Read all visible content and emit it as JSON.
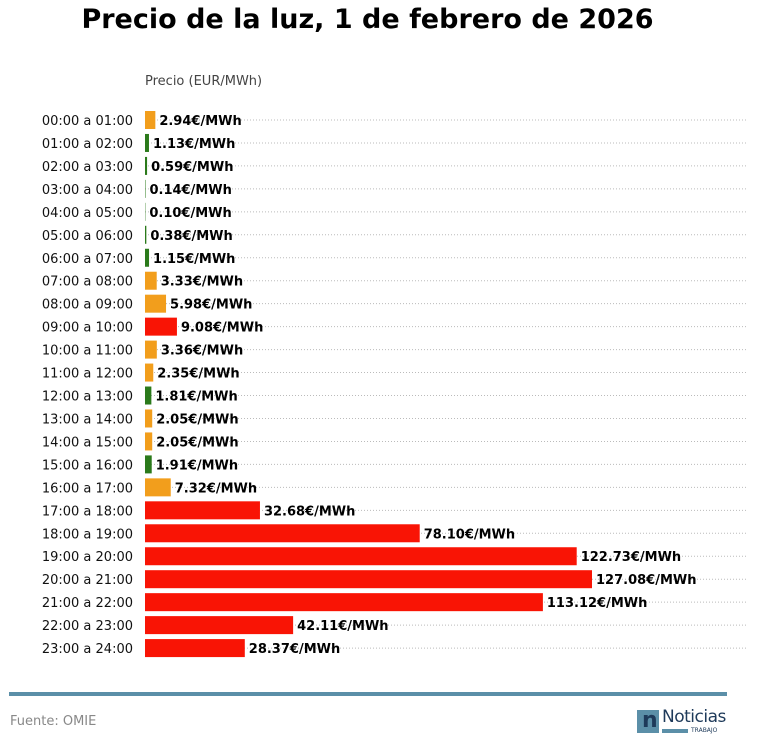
{
  "chart_data": {
    "type": "bar",
    "orientation": "horizontal",
    "title": "Precio de la luz, 1 de febrero de 2026",
    "xlabel": "Precio (EUR/MWh)",
    "ylabel": "",
    "xlim": [
      0,
      170
    ],
    "grid": "horizontal dotted",
    "value_suffix": "€/MWh",
    "categories": [
      "00:00 a 01:00",
      "01:00 a 02:00",
      "02:00 a 03:00",
      "03:00 a 04:00",
      "04:00 a 05:00",
      "05:00 a 06:00",
      "06:00 a 07:00",
      "07:00 a 08:00",
      "08:00 a 09:00",
      "09:00 a 10:00",
      "10:00 a 11:00",
      "11:00 a 12:00",
      "12:00 a 13:00",
      "13:00 a 14:00",
      "14:00 a 15:00",
      "15:00 a 16:00",
      "16:00 a 17:00",
      "17:00 a 18:00",
      "18:00 a 19:00",
      "19:00 a 20:00",
      "20:00 a 21:00",
      "21:00 a 22:00",
      "22:00 a 23:00",
      "23:00 a 24:00"
    ],
    "values": [
      2.94,
      1.13,
      0.59,
      0.14,
      0.1,
      0.38,
      1.15,
      3.33,
      5.98,
      9.08,
      3.36,
      2.35,
      1.81,
      2.05,
      2.05,
      1.91,
      7.32,
      32.68,
      78.1,
      122.73,
      127.08,
      113.12,
      42.11,
      28.37
    ],
    "labels": [
      "2.94€/MWh",
      "1.13€/MWh",
      "0.59€/MWh",
      "0.14€/MWh",
      "0.10€/MWh",
      "0.38€/MWh",
      "1.15€/MWh",
      "3.33€/MWh",
      "5.98€/MWh",
      "9.08€/MWh",
      "3.36€/MWh",
      "2.35€/MWh",
      "1.81€/MWh",
      "2.05€/MWh",
      "2.05€/MWh",
      "1.91€/MWh",
      "7.32€/MWh",
      "32.68€/MWh",
      "78.10€/MWh",
      "122.73€/MWh",
      "127.08€/MWh",
      "113.12€/MWh",
      "42.11€/MWh",
      "28.37€/MWh"
    ],
    "bar_colors": [
      "orange",
      "green",
      "green",
      "green",
      "green",
      "green",
      "green",
      "orange",
      "orange",
      "red",
      "orange",
      "orange",
      "green",
      "orange",
      "orange",
      "green",
      "orange",
      "red",
      "red",
      "red",
      "red",
      "red",
      "red",
      "red"
    ],
    "colors": {
      "green": "#2b7a1b",
      "orange": "#f29e1c",
      "red": "#f91405"
    }
  },
  "footer": {
    "source": "Fuente: OMIE",
    "logo_text": "Noticias",
    "logo_sub": "TRABAJO",
    "logo_mark": "n"
  }
}
